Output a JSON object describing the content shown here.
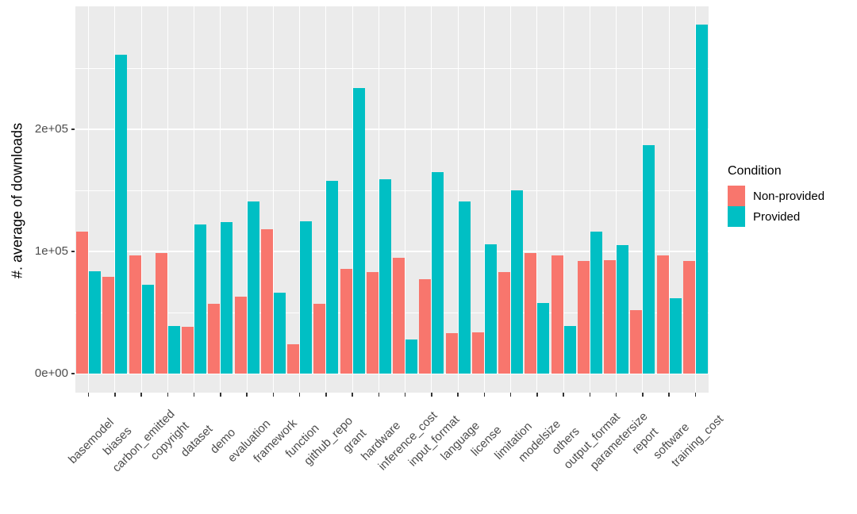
{
  "chart_data": {
    "type": "bar",
    "title": "",
    "xlabel": "",
    "ylabel": "#. average of downloads",
    "ylim": [
      0,
      290000
    ],
    "grid": true,
    "legend_position": "right",
    "panel_background": "#EBEBEB",
    "gridline_color": "#FFFFFF",
    "y_ticks": [
      {
        "value": 0,
        "label": "0e+00"
      },
      {
        "value": 100000,
        "label": "1e+05"
      },
      {
        "value": 200000,
        "label": "2e+05"
      }
    ],
    "y_minor_gridlines": [
      50000,
      150000,
      250000
    ],
    "categories": [
      "basemodel",
      "biases",
      "carbon_emitted",
      "copyright",
      "dataset",
      "demo",
      "evaluation",
      "framework",
      "function",
      "github_repo",
      "grant",
      "hardware",
      "inference_cost",
      "input_format",
      "language",
      "license",
      "limitation",
      "modelsize",
      "others",
      "output_format",
      "parametersize",
      "report",
      "software",
      "training_cost"
    ],
    "series": [
      {
        "name": "Non-provided",
        "color": "#F8766D",
        "values": [
          116000,
          79000,
          97000,
          99000,
          38000,
          57000,
          63000,
          118000,
          24000,
          57000,
          86000,
          83000,
          95000,
          77000,
          33000,
          34000,
          83000,
          99000,
          97000,
          92000,
          93000,
          52000,
          97000,
          92000
        ]
      },
      {
        "name": "Provided",
        "color": "#00BFC4",
        "values": [
          84000,
          261000,
          73000,
          39000,
          122000,
          124000,
          141000,
          66000,
          125000,
          158000,
          234000,
          159000,
          28000,
          165000,
          141000,
          106000,
          150000,
          58000,
          39000,
          116000,
          105000,
          187000,
          62000,
          286000
        ]
      }
    ]
  },
  "legend": {
    "title": "Condition",
    "items": [
      {
        "label": "Non-provided",
        "color": "#F8766D"
      },
      {
        "label": "Provided",
        "color": "#00BFC4"
      }
    ]
  }
}
